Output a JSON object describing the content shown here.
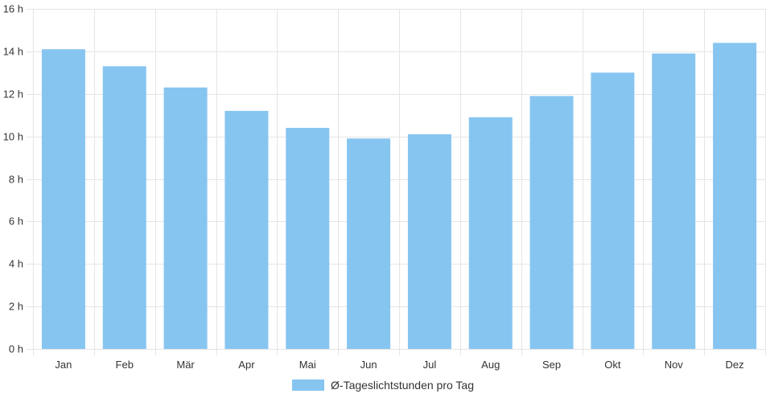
{
  "chart_data": {
    "type": "bar",
    "categories": [
      "Jan",
      "Feb",
      "Mär",
      "Apr",
      "Mai",
      "Jun",
      "Jul",
      "Aug",
      "Sep",
      "Okt",
      "Nov",
      "Dez"
    ],
    "series": [
      {
        "name": "Ø-Tageslichtstunden pro Tag",
        "values": [
          14.1,
          13.3,
          12.3,
          11.2,
          10.4,
          9.9,
          10.1,
          10.9,
          11.9,
          13.0,
          13.9,
          14.4
        ]
      }
    ],
    "y_ticks": [
      "0 h",
      "2 h",
      "4 h",
      "6 h",
      "8 h",
      "10 h",
      "12 h",
      "14 h",
      "16 h"
    ],
    "ylim": [
      0,
      16
    ],
    "grid": true,
    "legend_position": "bottom",
    "bar_color": "#87c5f1",
    "grid_color": "#e5e5e5"
  }
}
